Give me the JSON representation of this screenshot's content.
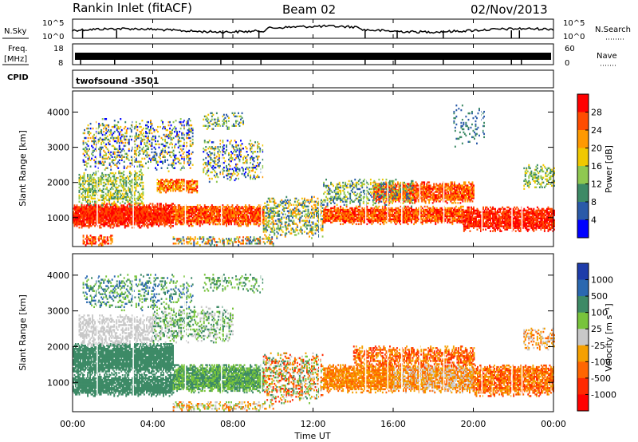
{
  "header": {
    "station": "Rankin Inlet (fitACF)",
    "beam": "Beam 02",
    "date": "02/Nov/2013"
  },
  "strips": {
    "nsky_label": "N.Sky",
    "nsky_ticks": [
      "10^5",
      "10^0"
    ],
    "nsearch_label": "N.Search",
    "freq_label_line1": "Freq.",
    "freq_label_line2": "[MHz]",
    "freq_ticks": [
      "18",
      "8"
    ],
    "nave_label": "Nave",
    "nave_ticks": [
      "60",
      "0"
    ],
    "cpid_label": "CPID",
    "cpid_value": "twofsound -3501"
  },
  "chart_data": [
    {
      "type": "heatmap",
      "panel": "power",
      "ylabel": "Slant Range [km]",
      "xlabel": "",
      "x_range_hours": [
        0,
        24
      ],
      "ylim_km": [
        180,
        4600
      ],
      "yticks": [
        "1000",
        "2000",
        "3000",
        "4000"
      ],
      "colorbar": {
        "label": "Power [dB]",
        "ticks": [
          "28",
          "24",
          "20",
          "16",
          "12",
          "8",
          "4"
        ],
        "colors": [
          "#ff0000",
          "#ff4c00",
          "#ff9900",
          "#f0c800",
          "#8fc850",
          "#3d8a66",
          "#2a5aa8",
          "#0000ff"
        ]
      }
    },
    {
      "type": "heatmap",
      "panel": "velocity",
      "ylabel": "Slant Range [km]",
      "xlabel": "Time UT",
      "x_range_hours": [
        0,
        24
      ],
      "ylim_km": [
        180,
        4600
      ],
      "yticks": [
        "1000",
        "2000",
        "3000",
        "4000"
      ],
      "xticks": [
        "00:00",
        "04:00",
        "08:00",
        "12:00",
        "16:00",
        "20:00",
        "00:00"
      ],
      "colorbar": {
        "label": "Velocity [m s⁻¹]",
        "ticks": [
          "1000",
          "500",
          "100",
          "25",
          "-25",
          "-100",
          "-500",
          "-1000"
        ],
        "colors": [
          "#1e3caa",
          "#2a68b0",
          "#3d8a66",
          "#78c43c",
          "#c8c8c8",
          "#f5a000",
          "#ff6600",
          "#ff2a00",
          "#ff0000"
        ]
      }
    }
  ]
}
